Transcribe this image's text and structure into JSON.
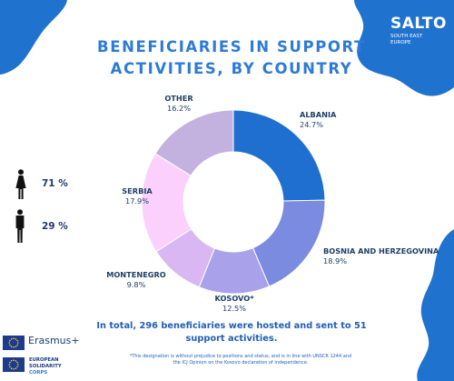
{
  "logo": {
    "name": "SALTO",
    "sub_line1": "SOUTH EAST",
    "sub_line2": "EUROPE"
  },
  "title_line1": "BENEFICIARIES IN SUPPORT",
  "title_line2": "ACTIVITIES, BY COUNTRY",
  "gender": [
    {
      "icon": "female-figure-icon",
      "value": "71 %"
    },
    {
      "icon": "male-figure-icon",
      "value": "29 %"
    }
  ],
  "summary_line1": "In total, 296 beneficiaries were hosted and sent to 51",
  "summary_line2": "support activities.",
  "footnote_line1": "*This designation is without prejudice to positions and status, and is in line with UNSCR 1244 and",
  "footnote_line2": "the ICJ Opinion on the Kosovo declaration of independence.",
  "erasmus_label": "Erasmus+",
  "esc_line1": "EUROPEAN",
  "esc_line2": "SOLIDARITY",
  "esc_line3": "CORPS",
  "colors": {
    "accent": "#2c7bd6",
    "blob": "#1f73cf",
    "dark_text": "#1e3a78",
    "albania": "#1e6fcf",
    "bosnia": "#7b8be0",
    "kosovo": "#a9a2ea",
    "montenegro": "#d8b7f2",
    "serbia": "#fcd0fc",
    "other": "#c3b2e0"
  },
  "chart_data": {
    "type": "pie",
    "donut": true,
    "title": "BENEFICIARIES IN SUPPORT ACTIVITIES, BY COUNTRY",
    "categories": [
      "ALBANIA",
      "BOSNIA AND HERZEGOVINA",
      "KOSOVO*",
      "MONTENEGRO",
      "SERBIA",
      "OTHER"
    ],
    "values": [
      24.7,
      18.9,
      12.5,
      9.8,
      17.9,
      16.2
    ],
    "value_labels": [
      "24.7%",
      "18.9%",
      "12.5%",
      "9.8%",
      "17.9%",
      "16.2%"
    ],
    "start": "top, clockwise"
  }
}
